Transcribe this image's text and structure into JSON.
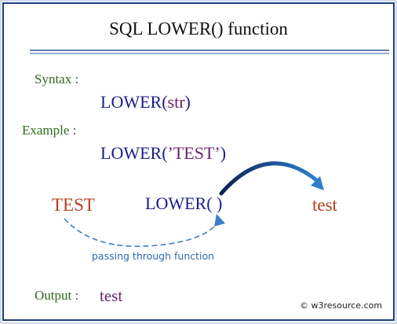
{
  "header": {
    "title": "SQL LOWER() function"
  },
  "syntax": {
    "label": "Syntax :",
    "parts": [
      "LOWER(",
      "str",
      ")"
    ]
  },
  "example": {
    "label": "Example :",
    "parts": [
      "LOWER(",
      "’TEST’",
      ")"
    ]
  },
  "flow": {
    "input": "TEST",
    "function": "LOWER( )",
    "output": "test",
    "caption": "passing through function"
  },
  "output": {
    "label": "Output :",
    "value": "test"
  },
  "footer": {
    "credit": "© w3resource.com"
  }
}
